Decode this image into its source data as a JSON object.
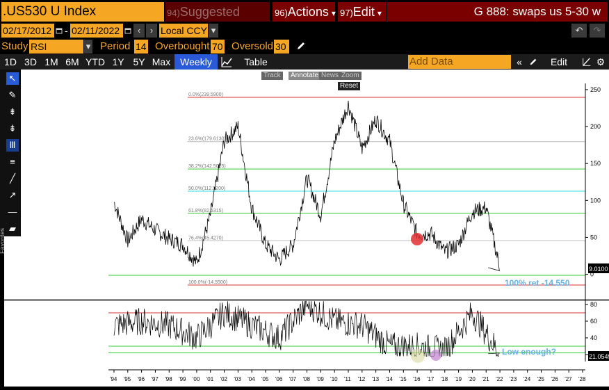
{
  "header": {
    "ticker": ".US530 U Index",
    "menu": [
      {
        "num": "94)",
        "label": "Suggested Charts"
      },
      {
        "num": "96)",
        "label": "Actions"
      },
      {
        "num": "97)",
        "label": "Edit"
      }
    ],
    "actions_arrow": "▾",
    "edit_arrow": "▾",
    "title": "G 888: swaps us 5-30 w"
  },
  "dates": {
    "start": "02/17/2012",
    "end": "02/11/2022",
    "currency": "Local CCY",
    "separator": "-"
  },
  "study": {
    "label": "Study",
    "value": "RSI",
    "period_label": "Period",
    "period": "14",
    "overbought_label": "Overbought",
    "overbought": "70",
    "oversold_label": "Oversold",
    "oversold": "30"
  },
  "ranges": [
    "1D",
    "3D",
    "1M",
    "6M",
    "YTD",
    "1Y",
    "5Y",
    "Max"
  ],
  "frequency": "Weekly ▼",
  "table_label": "Table",
  "add_data_placeholder": "Add Data",
  "edit_chart_label": "Edit Chart",
  "tool_buttons": {
    "track": "Track",
    "annotate": "Annotate",
    "news": "News",
    "zoom": "Zoom",
    "reset": "Reset"
  },
  "favorites_label": "Favorites",
  "fib_levels": [
    {
      "label": "0.0%(239.5900)",
      "value": 239.59,
      "color": "#e03030"
    },
    {
      "label": "23.6%(179.6130)",
      "value": 179.613,
      "color": "#bbbbbb"
    },
    {
      "label": "38.2%(142.5085)",
      "value": 142.5085,
      "color": "#33cc33"
    },
    {
      "label": "50.0%(112.5200)",
      "value": 112.52,
      "color": "#33dddd"
    },
    {
      "label": "61.8%(82.5315)",
      "value": 82.5315,
      "color": "#33cc33"
    },
    {
      "label": "76.4%(45.4270)",
      "value": 45.427,
      "color": "#bbbbbb"
    },
    {
      "label": "100.0%(-14.5500)",
      "value": -14.55,
      "color": "#e03030"
    }
  ],
  "main_annotation": "100% ret -14.550",
  "rsi_annotation": "Low enough?",
  "last_price": "9.0100",
  "last_rsi": "21.0549",
  "price_axis": [
    "250",
    "200",
    "150",
    "100",
    "50",
    "0"
  ],
  "rsi_axis": [
    "80",
    "60",
    "40",
    "20"
  ],
  "x_axis": [
    "'94",
    "'95",
    "'96",
    "'97",
    "'98",
    "'99",
    "'00",
    "'01",
    "'02",
    "'03",
    "'04",
    "'05",
    "'06",
    "'07",
    "'08",
    "'09",
    "'10",
    "'11",
    "'12",
    "'13",
    "'14",
    "'15",
    "'16",
    "'17",
    "'18",
    "'19",
    "'20",
    "'21",
    "'22",
    "'23",
    "'24",
    "'25",
    "'26",
    "'27",
    "'28"
  ],
  "chart_data": {
    "type": "line",
    "title": "",
    "series": [
      {
        "name": "",
        "x": [
          "1994",
          "1995",
          "1996",
          "1997",
          "1998",
          "1999",
          "2000",
          "2001",
          "2002",
          "2003",
          "2004",
          "2005",
          "2006",
          "2007",
          "2008",
          "2009",
          "2010",
          "2011",
          "2012",
          "2013",
          "2014",
          "2015",
          "2016",
          "2017",
          "2018",
          "2019",
          "2020",
          "2021",
          "2022"
        ],
        "values": [
          98,
          45,
          75,
          60,
          48,
          40,
          15,
          80,
          180,
          200,
          90,
          40,
          20,
          40,
          130,
          80,
          180,
          230,
          170,
          210,
          180,
          95,
          55,
          55,
          30,
          40,
          85,
          90,
          9
        ]
      }
    ],
    "rsi": {
      "x": [
        "1994",
        "1996",
        "1998",
        "2000",
        "2002",
        "2004",
        "2006",
        "2008",
        "2010",
        "2012",
        "2014",
        "2016",
        "2018",
        "2020",
        "2022"
      ],
      "values": [
        55,
        60,
        55,
        40,
        70,
        55,
        40,
        80,
        60,
        55,
        30,
        30,
        25,
        70,
        21
      ]
    },
    "ylim": [
      -20,
      260
    ],
    "rsi_ylim": [
      15,
      85
    ],
    "overbought": 70,
    "oversold": 30,
    "highlights": [
      {
        "x": "2016",
        "y": 50,
        "color": "#e03030"
      },
      {
        "x": "2016",
        "rsi": 22,
        "color": "#d8d8a0"
      },
      {
        "x": "2017.5",
        "rsi": 22,
        "color": "#c080d0"
      }
    ]
  }
}
